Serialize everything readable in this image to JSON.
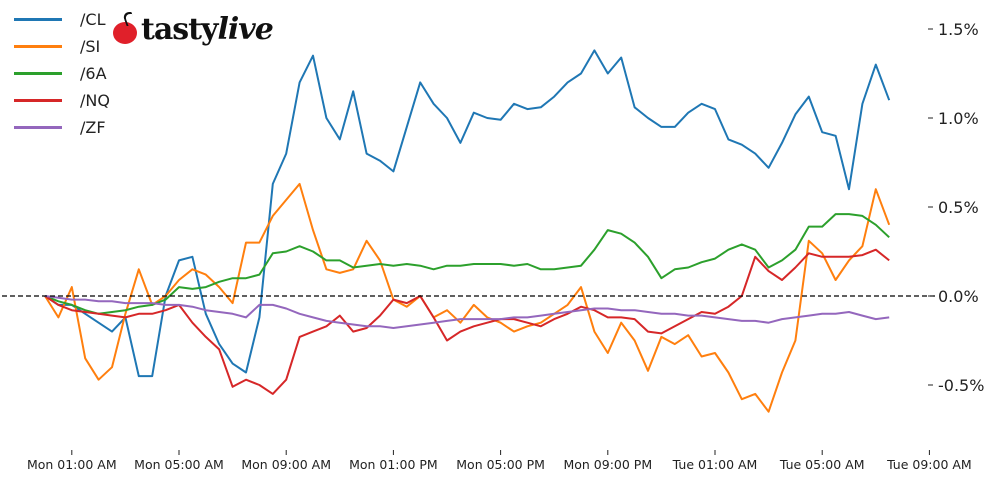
{
  "logo": {
    "text_main": "tasty",
    "text_italic": "live"
  },
  "chart_data": {
    "type": "line",
    "title": "",
    "xlabel": "",
    "ylabel": "",
    "y_unit": "%",
    "ylim": [
      -0.85,
      1.6
    ],
    "y_axis_position": "right",
    "grid": false,
    "legend_placement": "top-left",
    "reference_line": {
      "value": 0,
      "style": "dashed",
      "color": "#000000"
    },
    "x_ticks": [
      "Mon 01:00 AM",
      "Mon 05:00 AM",
      "Mon 09:00 AM",
      "Mon 01:00 PM",
      "Mon 05:00 PM",
      "Mon 09:00 PM",
      "Tue 01:00 AM",
      "Tue 05:00 AM",
      "Tue 09:00 AM"
    ],
    "y_ticks": [
      {
        "value": 1.5,
        "label": "1.5%"
      },
      {
        "value": 1.0,
        "label": "1.0%"
      },
      {
        "value": 0.5,
        "label": "0.5%"
      },
      {
        "value": 0.0,
        "label": "0.0%"
      },
      {
        "value": -0.5,
        "label": "-0.5%"
      }
    ],
    "x": [
      "Mon 00:00",
      "Mon 00:30",
      "Mon 01:00",
      "Mon 01:30",
      "Mon 02:00",
      "Mon 02:30",
      "Mon 03:00",
      "Mon 03:30",
      "Mon 04:00",
      "Mon 04:30",
      "Mon 05:00",
      "Mon 05:30",
      "Mon 06:00",
      "Mon 06:30",
      "Mon 07:00",
      "Mon 07:30",
      "Mon 08:00",
      "Mon 08:30",
      "Mon 09:00",
      "Mon 09:30",
      "Mon 10:00",
      "Mon 10:30",
      "Mon 11:00",
      "Mon 11:30",
      "Mon 12:00",
      "Mon 12:30",
      "Mon 13:00",
      "Mon 13:30",
      "Mon 14:00",
      "Mon 14:30",
      "Mon 15:00",
      "Mon 15:30",
      "Mon 16:00",
      "Mon 16:30",
      "Mon 17:00",
      "Mon 17:30",
      "Mon 18:00",
      "Mon 18:30",
      "Mon 19:00",
      "Mon 19:30",
      "Mon 20:00",
      "Mon 20:30",
      "Mon 21:00",
      "Mon 21:30",
      "Mon 22:00",
      "Mon 22:30",
      "Mon 23:00",
      "Mon 23:30",
      "Tue 00:00",
      "Tue 00:30",
      "Tue 01:00",
      "Tue 01:30",
      "Tue 02:00",
      "Tue 02:30",
      "Tue 03:00",
      "Tue 03:30",
      "Tue 04:00",
      "Tue 04:30",
      "Tue 05:00",
      "Tue 05:30",
      "Tue 06:00",
      "Tue 06:30",
      "Tue 07:00",
      "Tue 07:30"
    ],
    "series": [
      {
        "name": "/CL",
        "color": "#1f77b4",
        "values": [
          0,
          -0.05,
          -0.05,
          -0.1,
          -0.15,
          -0.2,
          -0.12,
          -0.45,
          -0.45,
          0.0,
          0.2,
          0.22,
          -0.1,
          -0.27,
          -0.38,
          -0.43,
          -0.12,
          0.63,
          0.8,
          1.2,
          1.35,
          1.0,
          0.88,
          1.15,
          0.8,
          0.76,
          0.7,
          0.95,
          1.2,
          1.08,
          1.0,
          0.86,
          1.03,
          1.0,
          0.99,
          1.08,
          1.05,
          1.06,
          1.12,
          1.2,
          1.25,
          1.38,
          1.25,
          1.34,
          1.06,
          1.0,
          0.95,
          0.95,
          1.03,
          1.08,
          1.05,
          0.88,
          0.85,
          0.8,
          0.72,
          0.86,
          1.02,
          1.12,
          0.92,
          0.9,
          0.6,
          1.08,
          1.3,
          1.1
        ]
      },
      {
        "name": "/SI",
        "color": "#ff7f0e",
        "values": [
          0,
          -0.12,
          0.05,
          -0.35,
          -0.47,
          -0.4,
          -0.1,
          0.15,
          -0.05,
          0,
          0.09,
          0.15,
          0.12,
          0.05,
          -0.04,
          0.3,
          0.3,
          0.45,
          0.54,
          0.63,
          0.37,
          0.15,
          0.13,
          0.15,
          0.31,
          0.2,
          -0.02,
          -0.06,
          0,
          -0.12,
          -0.08,
          -0.15,
          -0.05,
          -0.12,
          -0.15,
          -0.2,
          -0.17,
          -0.15,
          -0.1,
          -0.05,
          0.05,
          -0.2,
          -0.32,
          -0.15,
          -0.25,
          -0.42,
          -0.23,
          -0.27,
          -0.22,
          -0.34,
          -0.32,
          -0.43,
          -0.58,
          -0.55,
          -0.65,
          -0.43,
          -0.25,
          0.31,
          0.24,
          0.09,
          0.2,
          0.28,
          0.6,
          0.4
        ]
      },
      {
        "name": "/6A",
        "color": "#2ca02c",
        "values": [
          0,
          -0.03,
          -0.05,
          -0.08,
          -0.1,
          -0.09,
          -0.08,
          -0.06,
          -0.05,
          -0.02,
          0.05,
          0.04,
          0.05,
          0.08,
          0.1,
          0.1,
          0.12,
          0.24,
          0.25,
          0.28,
          0.25,
          0.2,
          0.2,
          0.16,
          0.17,
          0.18,
          0.17,
          0.18,
          0.17,
          0.15,
          0.17,
          0.17,
          0.18,
          0.18,
          0.18,
          0.17,
          0.18,
          0.15,
          0.15,
          0.16,
          0.17,
          0.26,
          0.37,
          0.35,
          0.3,
          0.22,
          0.1,
          0.15,
          0.16,
          0.19,
          0.21,
          0.26,
          0.29,
          0.26,
          0.16,
          0.2,
          0.26,
          0.39,
          0.39,
          0.46,
          0.46,
          0.45,
          0.4,
          0.33
        ]
      },
      {
        "name": "/NQ",
        "color": "#d62728",
        "values": [
          0,
          -0.05,
          -0.08,
          -0.09,
          -0.1,
          -0.11,
          -0.12,
          -0.1,
          -0.1,
          -0.08,
          -0.05,
          -0.15,
          -0.23,
          -0.3,
          -0.51,
          -0.47,
          -0.5,
          -0.55,
          -0.47,
          -0.23,
          -0.2,
          -0.17,
          -0.11,
          -0.2,
          -0.18,
          -0.11,
          -0.02,
          -0.04,
          0,
          -0.12,
          -0.25,
          -0.2,
          -0.17,
          -0.15,
          -0.13,
          -0.13,
          -0.15,
          -0.17,
          -0.13,
          -0.1,
          -0.06,
          -0.08,
          -0.12,
          -0.12,
          -0.13,
          -0.2,
          -0.21,
          -0.17,
          -0.13,
          -0.09,
          -0.1,
          -0.06,
          0,
          0.22,
          0.14,
          0.09,
          0.16,
          0.24,
          0.22,
          0.22,
          0.22,
          0.23,
          0.26,
          0.2
        ]
      },
      {
        "name": "/ZF",
        "color": "#9467bd",
        "values": [
          0,
          -0.01,
          -0.02,
          -0.02,
          -0.03,
          -0.03,
          -0.04,
          -0.04,
          -0.04,
          -0.05,
          -0.05,
          -0.06,
          -0.08,
          -0.09,
          -0.1,
          -0.12,
          -0.05,
          -0.05,
          -0.07,
          -0.1,
          -0.12,
          -0.14,
          -0.15,
          -0.16,
          -0.17,
          -0.17,
          -0.18,
          -0.17,
          -0.16,
          -0.15,
          -0.14,
          -0.13,
          -0.13,
          -0.13,
          -0.13,
          -0.12,
          -0.12,
          -0.11,
          -0.1,
          -0.09,
          -0.08,
          -0.07,
          -0.07,
          -0.08,
          -0.08,
          -0.09,
          -0.1,
          -0.1,
          -0.11,
          -0.11,
          -0.12,
          -0.13,
          -0.14,
          -0.14,
          -0.15,
          -0.13,
          -0.12,
          -0.11,
          -0.1,
          -0.1,
          -0.09,
          -0.11,
          -0.13,
          -0.12
        ]
      }
    ]
  }
}
